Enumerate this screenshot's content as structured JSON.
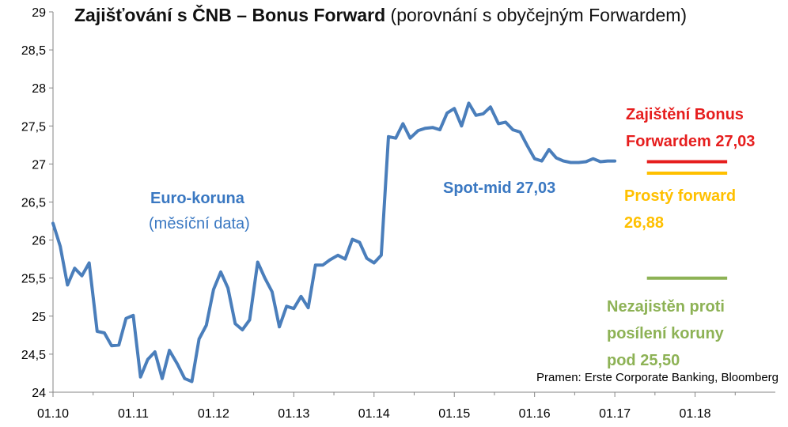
{
  "chart_data": {
    "type": "line",
    "title": "Zajišťování s ČNB – Bonus Forward",
    "subtitle": "(porovnání s obyčejným Forwardem)",
    "x_tick_labels": [
      "01.10",
      "01.11",
      "01.12",
      "01.13",
      "01.14",
      "01.15",
      "01.16",
      "01.17",
      "01.18"
    ],
    "y_tick_labels": [
      "24",
      "24,5",
      "25",
      "25,5",
      "26",
      "26,5",
      "27",
      "27,5",
      "28",
      "28,5",
      "29"
    ],
    "ylim": [
      24,
      29
    ],
    "xlim": [
      2010.0,
      2019.0
    ],
    "grid": false,
    "series": [
      {
        "name": "Euro-koruna",
        "note": "(měsíční data)",
        "color": "#4a7ebb",
        "points": [
          [
            2010.0,
            26.22
          ],
          [
            2010.09,
            25.92
          ],
          [
            2010.18,
            25.41
          ],
          [
            2010.27,
            25.63
          ],
          [
            2010.36,
            25.53
          ],
          [
            2010.45,
            25.7
          ],
          [
            2010.55,
            24.8
          ],
          [
            2010.64,
            24.78
          ],
          [
            2010.73,
            24.61
          ],
          [
            2010.82,
            24.62
          ],
          [
            2010.91,
            24.97
          ],
          [
            2011.0,
            25.01
          ],
          [
            2011.09,
            24.2
          ],
          [
            2011.18,
            24.43
          ],
          [
            2011.27,
            24.53
          ],
          [
            2011.36,
            24.18
          ],
          [
            2011.45,
            24.55
          ],
          [
            2011.55,
            24.37
          ],
          [
            2011.64,
            24.18
          ],
          [
            2011.73,
            24.14
          ],
          [
            2011.82,
            24.7
          ],
          [
            2011.91,
            24.88
          ],
          [
            2012.0,
            25.35
          ],
          [
            2012.09,
            25.58
          ],
          [
            2012.18,
            25.37
          ],
          [
            2012.27,
            24.9
          ],
          [
            2012.36,
            24.82
          ],
          [
            2012.45,
            24.95
          ],
          [
            2012.55,
            25.71
          ],
          [
            2012.64,
            25.5
          ],
          [
            2012.73,
            25.32
          ],
          [
            2012.82,
            24.86
          ],
          [
            2012.91,
            25.13
          ],
          [
            2013.0,
            25.1
          ],
          [
            2013.09,
            25.26
          ],
          [
            2013.18,
            25.11
          ],
          [
            2013.27,
            25.67
          ],
          [
            2013.36,
            25.67
          ],
          [
            2013.45,
            25.74
          ],
          [
            2013.55,
            25.8
          ],
          [
            2013.64,
            25.75
          ],
          [
            2013.73,
            26.01
          ],
          [
            2013.82,
            25.97
          ],
          [
            2013.91,
            25.76
          ],
          [
            2014.0,
            25.7
          ],
          [
            2014.09,
            25.8
          ],
          [
            2014.18,
            27.36
          ],
          [
            2014.27,
            27.34
          ],
          [
            2014.36,
            27.53
          ],
          [
            2014.45,
            27.34
          ],
          [
            2014.55,
            27.44
          ],
          [
            2014.64,
            27.47
          ],
          [
            2014.73,
            27.48
          ],
          [
            2014.82,
            27.45
          ],
          [
            2014.91,
            27.67
          ],
          [
            2015.0,
            27.73
          ],
          [
            2015.09,
            27.5
          ],
          [
            2015.18,
            27.8
          ],
          [
            2015.27,
            27.64
          ],
          [
            2015.36,
            27.66
          ],
          [
            2015.45,
            27.75
          ],
          [
            2015.55,
            27.53
          ],
          [
            2015.64,
            27.55
          ],
          [
            2015.73,
            27.45
          ],
          [
            2015.82,
            27.42
          ],
          [
            2015.91,
            27.24
          ],
          [
            2016.0,
            27.07
          ],
          [
            2016.09,
            27.04
          ],
          [
            2016.18,
            27.19
          ],
          [
            2016.27,
            27.08
          ],
          [
            2016.36,
            27.04
          ],
          [
            2016.45,
            27.02
          ],
          [
            2016.55,
            27.02
          ],
          [
            2016.64,
            27.03
          ],
          [
            2016.73,
            27.07
          ],
          [
            2016.82,
            27.03
          ],
          [
            2016.91,
            27.04
          ],
          [
            2017.0,
            27.04
          ]
        ]
      }
    ],
    "reference_lines": [
      {
        "name": "Zajištění Bonus Forwardem 27,03",
        "value": 27.03,
        "x": [
          2017.4,
          2018.4
        ],
        "color": "#e61e1e"
      },
      {
        "name": "Prostý forward 26,88",
        "value": 26.88,
        "x": [
          2017.4,
          2018.4
        ],
        "color": "#ffc000"
      },
      {
        "name": "Nezajistěn proti posílení koruny pod 25,50",
        "value": 25.5,
        "x": [
          2017.4,
          2018.4
        ],
        "color": "#8db255"
      }
    ],
    "annotations": {
      "series_label": "Euro-koruna",
      "series_sublabel": "(měsíční data)",
      "spot": "Spot-mid 27,03",
      "bonus_line1": "Zajištění Bonus",
      "bonus_line2": "Forwardem 27,03",
      "simple_line1": "Prostý forward",
      "simple_line2": "26,88",
      "unhedged_line1": "Nezajistěn proti",
      "unhedged_line2": "posílení koruny",
      "unhedged_line3": "pod 25,50",
      "source": "Pramen: Erste Corporate Banking, Bloomberg"
    }
  }
}
